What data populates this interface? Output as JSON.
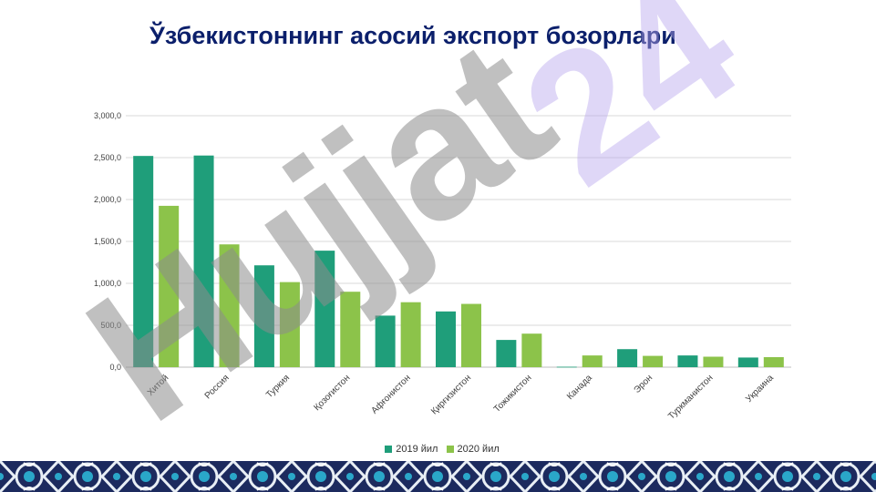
{
  "title": "Ўзбекистоннинг асосий экспорт бозорлари",
  "watermark_text": "Hujjat24",
  "colors": {
    "title": "#0b1f6b",
    "series_2019": "#1f9e7a",
    "series_2020": "#8cc34a",
    "watermark_gray": "#8c8c8c",
    "watermark_purple": "#b9a7ee",
    "footer_dark": "#1c2a5e",
    "footer_accent": "#2aa7c9"
  },
  "chart_data": {
    "type": "bar",
    "title": "",
    "xlabel": "",
    "ylabel": "",
    "ylim": [
      0,
      3000
    ],
    "yticks": [
      0,
      500,
      1000,
      1500,
      2000,
      2500,
      3000
    ],
    "ytick_labels": [
      "0,0",
      "500,0",
      "1,000,0",
      "1,500,0",
      "2,000,0",
      "2,500,0",
      "3,000,0"
    ],
    "grid": true,
    "legend_position": "bottom",
    "categories": [
      "Хитой",
      "Россия",
      "Туркия",
      "Қозоғистон",
      "Афғонистон",
      "Қирғизистон",
      "Тожикистон",
      "Канада",
      "Эрон",
      "Туркманистон",
      "Украина"
    ],
    "series": [
      {
        "name": "2019 йил",
        "values": [
          2520,
          2525,
          1215,
          1390,
          615,
          665,
          325,
          5,
          215,
          140,
          115
        ]
      },
      {
        "name": "2020 йил",
        "values": [
          1925,
          1465,
          1015,
          900,
          775,
          755,
          400,
          140,
          135,
          125,
          120
        ]
      }
    ]
  }
}
